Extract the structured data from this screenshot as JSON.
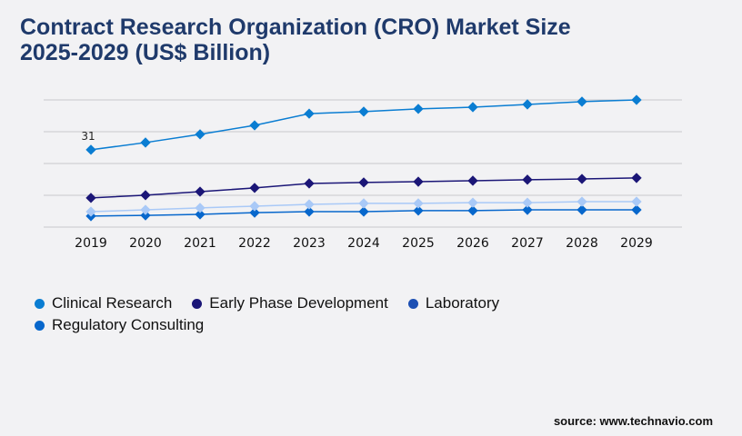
{
  "title_line1": "Contract Research Organization (CRO) Market Size",
  "title_line2": "2025-2029 (US$ Billion)",
  "source": "source: www.technavio.com",
  "chart_data": {
    "type": "line",
    "title": "Contract Research Organization (CRO) Market Size 2025-2029 (US$ Billion)",
    "xlabel": "",
    "ylabel": "",
    "grid": true,
    "legend_position": "bottom-left",
    "ylim": [
      0,
      51
    ],
    "categories": [
      "2019",
      "2020",
      "2021",
      "2022",
      "2023",
      "2024",
      "2025",
      "2026",
      "2027",
      "2028",
      "2029"
    ],
    "annotations": [
      {
        "series": "Clinical Research",
        "category": "2019",
        "label": "31"
      }
    ],
    "series": [
      {
        "name": "Clinical Research",
        "color": "#0a7dd2",
        "values": [
          31,
          33.9,
          37.2,
          40.8,
          45.5,
          46.3,
          47.4,
          48.1,
          49.2,
          50.3,
          51
        ]
      },
      {
        "name": "Early Phase Development",
        "color": "#1b1677",
        "values": [
          11.7,
          12.8,
          14.2,
          15.7,
          17.5,
          17.9,
          18.2,
          18.6,
          19.0,
          19.3,
          19.7
        ]
      },
      {
        "name": "Laboratory",
        "color": "#a9c9f7",
        "legend_color": "#1c4fb3",
        "values": [
          6.2,
          6.9,
          7.7,
          8.4,
          9.1,
          9.5,
          9.5,
          9.8,
          9.8,
          10.2,
          10.2
        ]
      },
      {
        "name": "Regulatory Consulting",
        "color": "#0767cc",
        "values": [
          4.4,
          4.7,
          5.1,
          5.8,
          6.2,
          6.2,
          6.6,
          6.6,
          6.9,
          6.9,
          6.9
        ]
      }
    ]
  }
}
